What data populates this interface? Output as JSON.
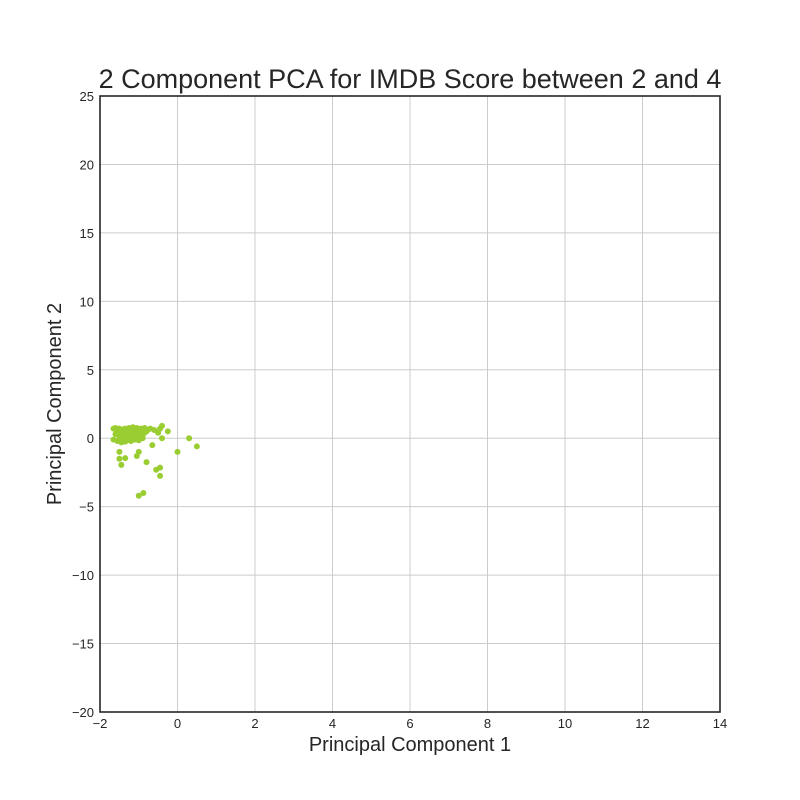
{
  "chart_data": {
    "type": "scatter",
    "title": "2 Component PCA for IMDB Score between 2 and 4",
    "xlabel": "Principal Component 1",
    "ylabel": "Principal Component 2",
    "xlim": [
      -2,
      14
    ],
    "ylim": [
      -20,
      25
    ],
    "x_ticks": [
      -2,
      0,
      2,
      4,
      6,
      8,
      10,
      12,
      14
    ],
    "y_ticks": [
      -20,
      -15,
      -10,
      -5,
      0,
      5,
      10,
      15,
      20,
      25
    ],
    "x_tick_labels": [
      "−2",
      "0",
      "2",
      "4",
      "6",
      "8",
      "10",
      "12",
      "14"
    ],
    "y_tick_labels": [
      "−20",
      "−15",
      "−10",
      "−5",
      "0",
      "5",
      "10",
      "15",
      "20",
      "25"
    ],
    "grid": true,
    "marker_color": "#9acd32",
    "series": [
      {
        "points": [
          [
            -1.65,
            0.7
          ],
          [
            -1.6,
            0.75
          ],
          [
            -1.55,
            0.6
          ],
          [
            -1.5,
            0.7
          ],
          [
            -1.45,
            0.55
          ],
          [
            -1.4,
            0.65
          ],
          [
            -1.35,
            0.7
          ],
          [
            -1.3,
            0.5
          ],
          [
            -1.25,
            0.75
          ],
          [
            -1.2,
            0.6
          ],
          [
            -1.15,
            0.8
          ],
          [
            -1.1,
            0.65
          ],
          [
            -1.05,
            0.75
          ],
          [
            -1.0,
            0.55
          ],
          [
            -0.95,
            0.7
          ],
          [
            -0.9,
            0.6
          ],
          [
            -0.85,
            0.75
          ],
          [
            -0.8,
            0.5
          ],
          [
            -0.75,
            0.65
          ],
          [
            -0.7,
            0.7
          ],
          [
            -1.6,
            0.3
          ],
          [
            -1.5,
            0.2
          ],
          [
            -1.45,
            0.4
          ],
          [
            -1.4,
            0.1
          ],
          [
            -1.35,
            0.35
          ],
          [
            -1.3,
            0.2
          ],
          [
            -1.25,
            0.4
          ],
          [
            -1.2,
            0.15
          ],
          [
            -1.15,
            0.3
          ],
          [
            -1.1,
            0.45
          ],
          [
            -1.05,
            0.2
          ],
          [
            -1.0,
            0.35
          ],
          [
            -0.95,
            0.25
          ],
          [
            -0.9,
            0.1
          ],
          [
            -0.85,
            0.4
          ],
          [
            -1.65,
            -0.1
          ],
          [
            -1.55,
            -0.2
          ],
          [
            -1.5,
            -0.05
          ],
          [
            -1.45,
            -0.3
          ],
          [
            -1.4,
            -0.1
          ],
          [
            -1.35,
            -0.25
          ],
          [
            -1.3,
            -0.15
          ],
          [
            -1.25,
            -0.05
          ],
          [
            -1.2,
            -0.2
          ],
          [
            -1.1,
            -0.1
          ],
          [
            -1.0,
            -0.15
          ],
          [
            -0.9,
            0.0
          ],
          [
            -0.6,
            0.6
          ],
          [
            -0.5,
            0.4
          ],
          [
            -0.45,
            0.7
          ],
          [
            -0.4,
            0.9
          ],
          [
            -0.4,
            0.0
          ],
          [
            -0.25,
            0.5
          ],
          [
            -0.65,
            -0.5
          ],
          [
            0.3,
            0.0
          ],
          [
            0.5,
            -0.6
          ],
          [
            -1.5,
            -1.0
          ],
          [
            -1.05,
            -1.3
          ],
          [
            -1.0,
            -1.0
          ],
          [
            -0.8,
            -1.75
          ],
          [
            -1.5,
            -1.5
          ],
          [
            -1.35,
            -1.45
          ],
          [
            -1.45,
            -1.95
          ],
          [
            -0.0,
            -1.0
          ],
          [
            -0.55,
            -2.3
          ],
          [
            -0.45,
            -2.15
          ],
          [
            -0.45,
            -2.75
          ],
          [
            -1.0,
            -4.2
          ],
          [
            -0.88,
            -4.0
          ]
        ]
      }
    ]
  }
}
